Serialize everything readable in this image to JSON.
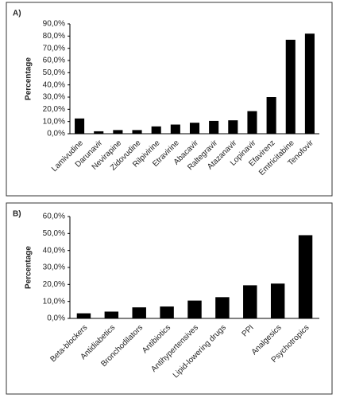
{
  "chart_data": [
    {
      "type": "bar",
      "label": "A)",
      "ylabel": "Percentage",
      "color": "#000000",
      "categories": [
        "Lamivudine",
        "Darunavir",
        "Nevirapine",
        "Zidovudine",
        "Rilpivirine",
        "Etravirine",
        "Abacavir",
        "Raltegravir",
        "Atazanavir",
        "Lopinavir",
        "Efavirenz",
        "Emtricitabine",
        "Tenofovir"
      ],
      "values": [
        12.5,
        2,
        3,
        3,
        6,
        7.5,
        9,
        10.5,
        11,
        18.5,
        30,
        77,
        82
      ],
      "ylim": [
        0,
        90
      ],
      "yticks": [
        {
          "value": 0,
          "label": "0,0%"
        },
        {
          "value": 10,
          "label": "10,0%"
        },
        {
          "value": 20,
          "label": "20,0%"
        },
        {
          "value": 30,
          "label": "30,0%"
        },
        {
          "value": 40,
          "label": "40,0%"
        },
        {
          "value": 50,
          "label": "50,0%"
        },
        {
          "value": 60,
          "label": "60,0%"
        },
        {
          "value": 70,
          "label": "70,0%"
        },
        {
          "value": 80,
          "label": "80,0%"
        },
        {
          "value": 90,
          "label": "90,0%"
        }
      ]
    },
    {
      "type": "bar",
      "label": "B)",
      "ylabel": "Percentage",
      "color": "#000000",
      "categories": [
        "Beta-blockers",
        "Antidiabetics",
        "Bronchodilators",
        "Antibiotics",
        "Antihypertensives",
        "Lipid-lowering drugs",
        "PPI",
        "Analgesics",
        "Psychotropics"
      ],
      "values": [
        3,
        4,
        6.5,
        7,
        10.5,
        12.5,
        19.5,
        20.5,
        49
      ],
      "ylim": [
        0,
        60
      ],
      "yticks": [
        {
          "value": 0,
          "label": "0,0%"
        },
        {
          "value": 10,
          "label": "10,0%"
        },
        {
          "value": 20,
          "label": "20,0%"
        },
        {
          "value": 30,
          "label": "30,0%"
        },
        {
          "value": 40,
          "label": "40,0%"
        },
        {
          "value": 50,
          "label": "50,0%"
        },
        {
          "value": 60,
          "label": "60,0%"
        }
      ]
    }
  ]
}
